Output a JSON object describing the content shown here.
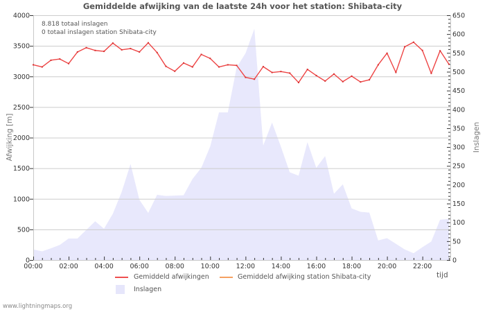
{
  "header": {
    "title": "Gemiddelde afwijking van de laatste 24h voor het station: Shibata-city"
  },
  "info": {
    "total_strikes": "8.818 totaal inslagen",
    "station_strikes": "0 totaal inslagen station Shibata-city"
  },
  "axes": {
    "left_title": "Afwijking  [m]",
    "right_title": "Inslagen",
    "x_title": "tijd"
  },
  "legend": {
    "items": [
      {
        "label": "Gemiddeld afwijkingen",
        "color": "#ee4f4f",
        "kind": "line"
      },
      {
        "label": "Gemiddeld afwijking station Shibata-city",
        "color": "#f5a060",
        "kind": "line"
      },
      {
        "label": "Inslagen",
        "color": "#e6e6fb",
        "kind": "area"
      }
    ]
  },
  "footer": {
    "text": "www.lightningmaps.org"
  },
  "colors": {
    "deviation_line": "#ee4444",
    "station_line": "#f5a060",
    "strikes_area": "#e8e8fc",
    "grid": "#cccccc",
    "axis": "#c8c8c8",
    "text": "#555555"
  },
  "chart_data": {
    "type": "line",
    "title": "Gemiddelde afwijking van de laatste 24h voor het station: Shibata-city",
    "xlabel": "tijd",
    "ylabel": "Afwijking  [m]",
    "y2label": "Inslagen",
    "x_tick_labels": [
      "00:00",
      "02:00",
      "04:00",
      "06:00",
      "08:00",
      "10:00",
      "12:00",
      "14:00",
      "16:00",
      "18:00",
      "20:00",
      "22:00"
    ],
    "x_step_hours": 0.5,
    "xlim_hours": [
      0,
      23.5
    ],
    "ylim": [
      0,
      4000
    ],
    "y_ticks": [
      0,
      500,
      1000,
      1500,
      2000,
      2500,
      3000,
      3500,
      4000
    ],
    "y2lim": [
      0,
      650
    ],
    "y2_ticks": [
      0,
      50,
      100,
      150,
      200,
      250,
      300,
      350,
      400,
      450,
      500,
      550,
      600,
      650
    ],
    "grid": true,
    "legend_position": "bottom",
    "series": [
      {
        "name": "Gemiddeld afwijkingen",
        "type": "line",
        "axis": "left",
        "values": [
          3190,
          3155,
          3265,
          3285,
          3210,
          3400,
          3470,
          3425,
          3410,
          3545,
          3435,
          3455,
          3400,
          3550,
          3390,
          3165,
          3085,
          3220,
          3155,
          3360,
          3295,
          3155,
          3190,
          3180,
          2985,
          2955,
          3160,
          3065,
          3080,
          3055,
          2900,
          3115,
          3015,
          2925,
          3040,
          2915,
          3005,
          2910,
          2945,
          3190,
          3380,
          3065,
          3485,
          3560,
          3425,
          3050,
          3420,
          3200
        ]
      },
      {
        "name": "Gemiddeld afwijking station Shibata-city",
        "type": "line",
        "axis": "left",
        "values": []
      },
      {
        "name": "Inslagen",
        "type": "area",
        "axis": "right",
        "values": [
          28,
          23,
          31,
          40,
          57,
          57,
          80,
          103,
          83,
          123,
          181,
          255,
          160,
          125,
          173,
          170,
          171,
          172,
          215,
          245,
          301,
          392,
          392,
          512,
          549,
          614,
          304,
          365,
          301,
          233,
          224,
          313,
          245,
          276,
          176,
          201,
          137,
          128,
          126,
          52,
          58,
          43,
          28,
          18,
          34,
          49,
          107,
          109
        ]
      }
    ]
  }
}
